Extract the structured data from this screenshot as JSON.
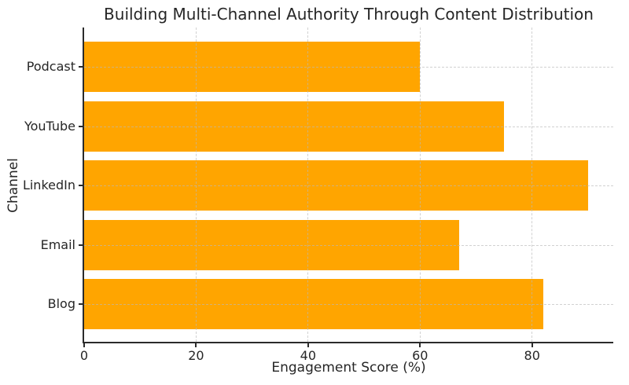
{
  "chart_data": {
    "type": "bar",
    "orientation": "horizontal",
    "title": "Building Multi-Channel Authority Through Content Distribution",
    "xlabel": "Engagement Score (%)",
    "ylabel": "Channel",
    "categories": [
      "Podcast",
      "YouTube",
      "LinkedIn",
      "Email",
      "Blog"
    ],
    "values": [
      60,
      75,
      90,
      67,
      82
    ],
    "xticks": [
      0,
      20,
      40,
      60,
      80
    ],
    "xlim": [
      0,
      94.5
    ],
    "bar_color": "#FFA500",
    "axis_color": "#2b2b2b",
    "text_color": "#262626",
    "grid": true,
    "grid_linestyle": "dashed",
    "grid_position": "above-bars",
    "legend_position": "none"
  }
}
